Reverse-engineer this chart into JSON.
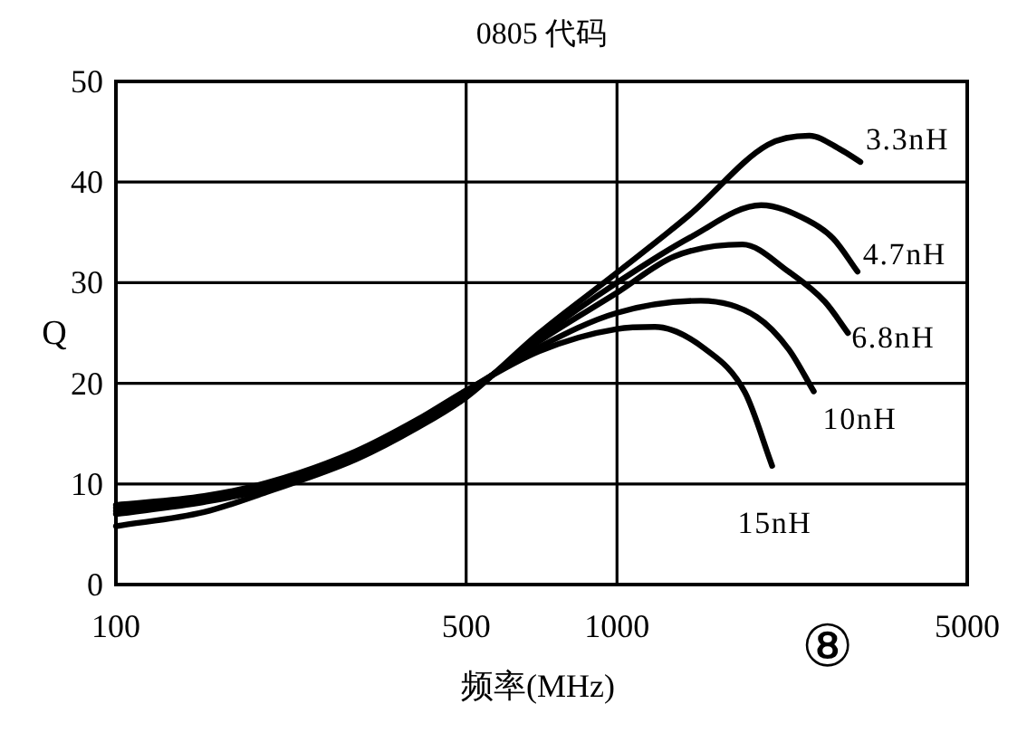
{
  "chart_data": {
    "type": "line",
    "title": "0805 代码",
    "xlabel": "频率(MHz)",
    "ylabel": "Q",
    "log": "x",
    "xlim": [
      100,
      5000
    ],
    "xticks": [
      100,
      500,
      1000,
      5000
    ],
    "ylim": [
      0,
      50
    ],
    "yticks": [
      0,
      10,
      20,
      30,
      40,
      50
    ],
    "grid": true,
    "line_style": "solid",
    "annotations": [
      "⑧"
    ],
    "series": [
      {
        "name": "3.3nH",
        "color": "#000000",
        "x": [
          100,
          150,
          200,
          300,
          400,
          500,
          700,
          1000,
          1400,
          2000,
          2420,
          2800,
          3060
        ],
        "values": [
          5.8,
          7.2,
          9.2,
          12.4,
          15.6,
          18.6,
          25.0,
          31.0,
          36.8,
          43.7,
          44.6,
          43.2,
          42.0
        ]
      },
      {
        "name": "4.7nH",
        "color": "#000000",
        "x": [
          100,
          150,
          200,
          300,
          400,
          500,
          700,
          1000,
          1400,
          1940,
          2400,
          2700,
          3020
        ],
        "values": [
          7.0,
          8.2,
          9.5,
          12.6,
          15.8,
          18.8,
          24.6,
          30.0,
          34.5,
          37.7,
          36.2,
          34.4,
          31.1
        ]
      },
      {
        "name": "6.8nH",
        "color": "#000000",
        "x": [
          100,
          150,
          200,
          300,
          400,
          500,
          700,
          1000,
          1300,
          1780,
          2200,
          2600,
          2890
        ],
        "values": [
          7.3,
          8.4,
          9.7,
          12.8,
          16.0,
          19.0,
          24.2,
          29.0,
          32.6,
          33.8,
          31.1,
          28.1,
          25.0
        ]
      },
      {
        "name": "10nH",
        "color": "#000000",
        "x": [
          100,
          150,
          200,
          300,
          400,
          500,
          700,
          1000,
          1470,
          1900,
          2200,
          2470
        ],
        "values": [
          7.6,
          8.6,
          9.9,
          13.0,
          16.2,
          19.2,
          23.6,
          27.0,
          28.2,
          26.6,
          23.4,
          19.2
        ]
      },
      {
        "name": "15nH",
        "color": "#000000",
        "x": [
          100,
          150,
          200,
          300,
          400,
          500,
          700,
          1000,
          1190,
          1500,
          1800,
          2040
        ],
        "values": [
          7.9,
          8.8,
          10.1,
          13.2,
          16.4,
          19.3,
          23.2,
          25.4,
          25.6,
          23.4,
          19.1,
          11.8
        ]
      }
    ]
  }
}
